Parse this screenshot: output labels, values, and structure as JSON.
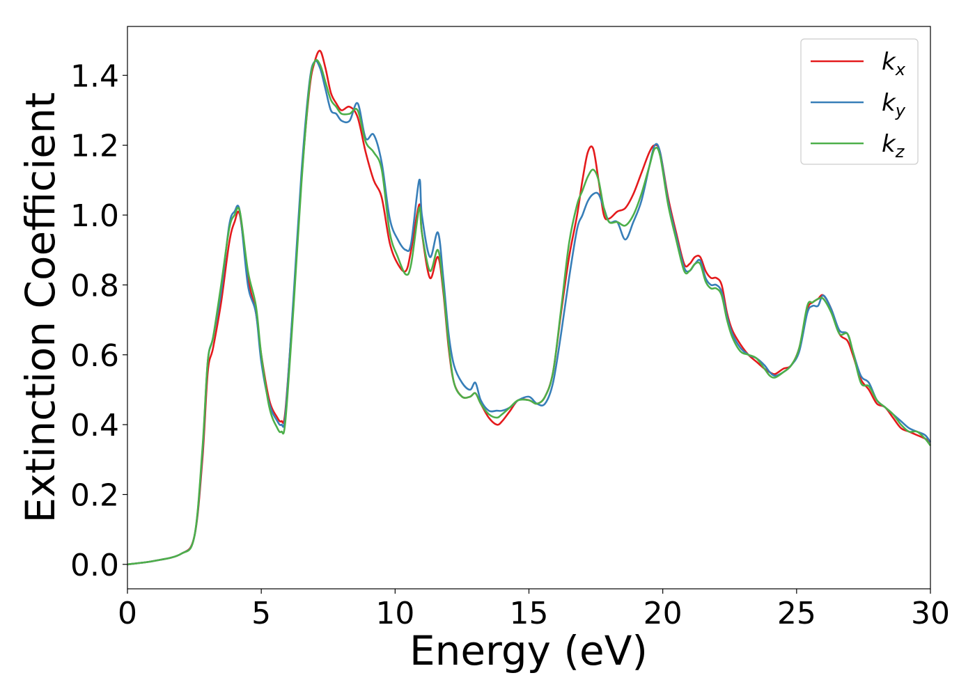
{
  "chart_data": {
    "type": "line",
    "title": "",
    "xlabel": "Energy (eV)",
    "ylabel": "Extinction Coefficient",
    "xlim": [
      0,
      30
    ],
    "ylim": [
      -0.07,
      1.54
    ],
    "xticks": [
      {
        "value": 0,
        "label": "0"
      },
      {
        "value": 5,
        "label": "5"
      },
      {
        "value": 10,
        "label": "10"
      },
      {
        "value": 15,
        "label": "15"
      },
      {
        "value": 20,
        "label": "20"
      },
      {
        "value": 25,
        "label": "25"
      },
      {
        "value": 30,
        "label": "30"
      }
    ],
    "yticks": [
      {
        "value": 0.0,
        "label": "0.0"
      },
      {
        "value": 0.2,
        "label": "0.2"
      },
      {
        "value": 0.4,
        "label": "0.4"
      },
      {
        "value": 0.6,
        "label": "0.6"
      },
      {
        "value": 0.8,
        "label": "0.8"
      },
      {
        "value": 1.0,
        "label": "1.0"
      },
      {
        "value": 1.2,
        "label": "1.2"
      },
      {
        "value": 1.4,
        "label": "1.4"
      }
    ],
    "grid": false,
    "legend_position": "top-right",
    "series": [
      {
        "name": "kx",
        "sub": "x",
        "color": "#e41a1c",
        "x": [
          0,
          1,
          2,
          2.5,
          2.8,
          3.0,
          3.2,
          3.5,
          3.8,
          4.0,
          4.2,
          4.5,
          4.8,
          5.0,
          5.3,
          5.6,
          5.75,
          5.9,
          6.2,
          6.5,
          6.8,
          7.0,
          7.2,
          7.4,
          7.6,
          7.8,
          8.0,
          8.3,
          8.6,
          8.9,
          9.2,
          9.5,
          9.8,
          10.1,
          10.4,
          10.6,
          10.9,
          11.0,
          11.3,
          11.6,
          11.8,
          12.0,
          12.2,
          12.5,
          12.8,
          13.0,
          13.2,
          13.5,
          13.8,
          14.0,
          14.3,
          14.6,
          15.0,
          15.3,
          15.6,
          15.9,
          16.2,
          16.5,
          16.8,
          17.0,
          17.2,
          17.4,
          17.6,
          17.8,
          18.0,
          18.3,
          18.6,
          18.9,
          19.2,
          19.5,
          19.7,
          19.9,
          20.2,
          20.5,
          20.8,
          21.0,
          21.2,
          21.4,
          21.6,
          21.8,
          22.0,
          22.2,
          22.4,
          22.6,
          22.9,
          23.2,
          23.5,
          23.8,
          24.0,
          24.2,
          24.5,
          24.8,
          25.1,
          25.4,
          25.6,
          25.8,
          26.0,
          26.3,
          26.6,
          26.9,
          27.1,
          27.4,
          27.7,
          28.0,
          28.3,
          28.6,
          28.9,
          29.2,
          29.5,
          29.8,
          30.0
        ],
        "y": [
          0.0,
          0.01,
          0.03,
          0.08,
          0.3,
          0.55,
          0.62,
          0.75,
          0.92,
          0.98,
          1.0,
          0.82,
          0.72,
          0.6,
          0.47,
          0.42,
          0.41,
          0.44,
          0.75,
          1.1,
          1.36,
          1.44,
          1.47,
          1.42,
          1.35,
          1.32,
          1.3,
          1.31,
          1.28,
          1.18,
          1.1,
          1.05,
          0.92,
          0.86,
          0.84,
          0.9,
          1.03,
          0.95,
          0.82,
          0.88,
          0.78,
          0.62,
          0.52,
          0.48,
          0.48,
          0.49,
          0.46,
          0.42,
          0.4,
          0.41,
          0.44,
          0.47,
          0.47,
          0.46,
          0.48,
          0.55,
          0.72,
          0.88,
          1.0,
          1.1,
          1.18,
          1.19,
          1.1,
          1.0,
          0.99,
          1.01,
          1.02,
          1.06,
          1.12,
          1.18,
          1.2,
          1.18,
          1.05,
          0.95,
          0.86,
          0.86,
          0.88,
          0.88,
          0.84,
          0.82,
          0.82,
          0.8,
          0.72,
          0.67,
          0.63,
          0.6,
          0.58,
          0.56,
          0.55,
          0.545,
          0.56,
          0.57,
          0.62,
          0.73,
          0.75,
          0.76,
          0.77,
          0.73,
          0.66,
          0.64,
          0.6,
          0.53,
          0.5,
          0.46,
          0.45,
          0.42,
          0.39,
          0.38,
          0.37,
          0.36,
          0.35
        ]
      },
      {
        "name": "ky",
        "sub": "y",
        "color": "#377eb8",
        "x": [
          0,
          1,
          2,
          2.5,
          2.8,
          3.0,
          3.2,
          3.5,
          3.8,
          4.0,
          4.2,
          4.5,
          4.8,
          5.0,
          5.3,
          5.6,
          5.75,
          5.9,
          6.2,
          6.5,
          6.8,
          7.0,
          7.2,
          7.4,
          7.6,
          7.8,
          8.0,
          8.3,
          8.6,
          8.9,
          9.2,
          9.5,
          9.8,
          10.1,
          10.4,
          10.6,
          10.9,
          11.0,
          11.3,
          11.6,
          11.8,
          12.0,
          12.2,
          12.5,
          12.8,
          13.0,
          13.2,
          13.5,
          13.8,
          14.0,
          14.3,
          14.6,
          15.0,
          15.3,
          15.6,
          15.9,
          16.2,
          16.5,
          16.8,
          17.0,
          17.2,
          17.4,
          17.6,
          17.8,
          18.0,
          18.3,
          18.6,
          18.9,
          19.2,
          19.5,
          19.7,
          19.9,
          20.2,
          20.5,
          20.8,
          21.0,
          21.2,
          21.4,
          21.6,
          21.8,
          22.0,
          22.2,
          22.4,
          22.6,
          22.9,
          23.2,
          23.5,
          23.8,
          24.0,
          24.2,
          24.5,
          24.8,
          25.1,
          25.4,
          25.6,
          25.8,
          26.0,
          26.3,
          26.6,
          26.9,
          27.1,
          27.4,
          27.7,
          28.0,
          28.3,
          28.6,
          28.9,
          29.2,
          29.5,
          29.8,
          30.0
        ],
        "y": [
          0.0,
          0.01,
          0.03,
          0.08,
          0.32,
          0.58,
          0.65,
          0.78,
          0.97,
          1.01,
          1.01,
          0.8,
          0.72,
          0.58,
          0.46,
          0.41,
          0.4,
          0.43,
          0.76,
          1.12,
          1.38,
          1.44,
          1.42,
          1.36,
          1.3,
          1.29,
          1.27,
          1.27,
          1.32,
          1.22,
          1.23,
          1.15,
          0.99,
          0.93,
          0.9,
          0.92,
          1.1,
          1.0,
          0.88,
          0.95,
          0.82,
          0.66,
          0.57,
          0.52,
          0.5,
          0.52,
          0.47,
          0.44,
          0.44,
          0.44,
          0.45,
          0.47,
          0.48,
          0.46,
          0.46,
          0.52,
          0.66,
          0.82,
          0.96,
          1.0,
          1.04,
          1.06,
          1.06,
          1.02,
          0.98,
          0.98,
          0.93,
          0.98,
          1.04,
          1.14,
          1.2,
          1.18,
          1.04,
          0.94,
          0.85,
          0.84,
          0.86,
          0.87,
          0.82,
          0.8,
          0.8,
          0.78,
          0.71,
          0.66,
          0.62,
          0.6,
          0.59,
          0.57,
          0.55,
          0.54,
          0.55,
          0.57,
          0.61,
          0.72,
          0.74,
          0.74,
          0.77,
          0.73,
          0.67,
          0.66,
          0.61,
          0.54,
          0.52,
          0.47,
          0.45,
          0.43,
          0.41,
          0.39,
          0.38,
          0.37,
          0.35
        ]
      },
      {
        "name": "kz",
        "sub": "z",
        "color": "#4daf4a",
        "x": [
          0,
          1,
          2,
          2.5,
          2.8,
          3.0,
          3.2,
          3.5,
          3.8,
          4.0,
          4.2,
          4.5,
          4.8,
          5.0,
          5.3,
          5.6,
          5.75,
          5.9,
          6.2,
          6.5,
          6.8,
          7.0,
          7.2,
          7.4,
          7.6,
          7.8,
          8.0,
          8.3,
          8.6,
          8.9,
          9.2,
          9.5,
          9.8,
          10.1,
          10.4,
          10.6,
          10.9,
          11.0,
          11.3,
          11.6,
          11.8,
          12.0,
          12.2,
          12.5,
          12.8,
          13.0,
          13.2,
          13.5,
          13.8,
          14.0,
          14.3,
          14.6,
          15.0,
          15.3,
          15.6,
          15.9,
          16.2,
          16.5,
          16.8,
          17.0,
          17.2,
          17.4,
          17.6,
          17.8,
          18.0,
          18.3,
          18.6,
          18.9,
          19.2,
          19.5,
          19.7,
          19.9,
          20.2,
          20.5,
          20.8,
          21.0,
          21.2,
          21.4,
          21.6,
          21.8,
          22.0,
          22.2,
          22.4,
          22.6,
          22.9,
          23.2,
          23.5,
          23.8,
          24.0,
          24.2,
          24.5,
          24.8,
          25.1,
          25.4,
          25.6,
          25.8,
          26.0,
          26.3,
          26.6,
          26.9,
          27.1,
          27.4,
          27.7,
          28.0,
          28.3,
          28.6,
          28.9,
          29.2,
          29.5,
          29.8,
          30.0
        ],
        "y": [
          0.0,
          0.01,
          0.03,
          0.08,
          0.33,
          0.58,
          0.65,
          0.8,
          0.96,
          1.0,
          1.01,
          0.84,
          0.74,
          0.6,
          0.45,
          0.39,
          0.38,
          0.41,
          0.73,
          1.09,
          1.37,
          1.44,
          1.43,
          1.38,
          1.33,
          1.31,
          1.29,
          1.29,
          1.3,
          1.21,
          1.18,
          1.13,
          0.95,
          0.88,
          0.83,
          0.86,
          1.02,
          0.95,
          0.84,
          0.9,
          0.79,
          0.63,
          0.52,
          0.48,
          0.48,
          0.49,
          0.46,
          0.43,
          0.42,
          0.43,
          0.45,
          0.47,
          0.47,
          0.46,
          0.48,
          0.55,
          0.73,
          0.92,
          1.03,
          1.07,
          1.11,
          1.13,
          1.1,
          1.02,
          0.98,
          0.98,
          0.97,
          1.0,
          1.06,
          1.14,
          1.19,
          1.17,
          1.03,
          0.93,
          0.84,
          0.84,
          0.86,
          0.86,
          0.81,
          0.79,
          0.79,
          0.77,
          0.7,
          0.65,
          0.61,
          0.6,
          0.59,
          0.56,
          0.54,
          0.535,
          0.55,
          0.57,
          0.62,
          0.74,
          0.75,
          0.76,
          0.76,
          0.72,
          0.66,
          0.66,
          0.61,
          0.52,
          0.51,
          0.47,
          0.45,
          0.43,
          0.4,
          0.38,
          0.38,
          0.36,
          0.34
        ]
      }
    ]
  }
}
